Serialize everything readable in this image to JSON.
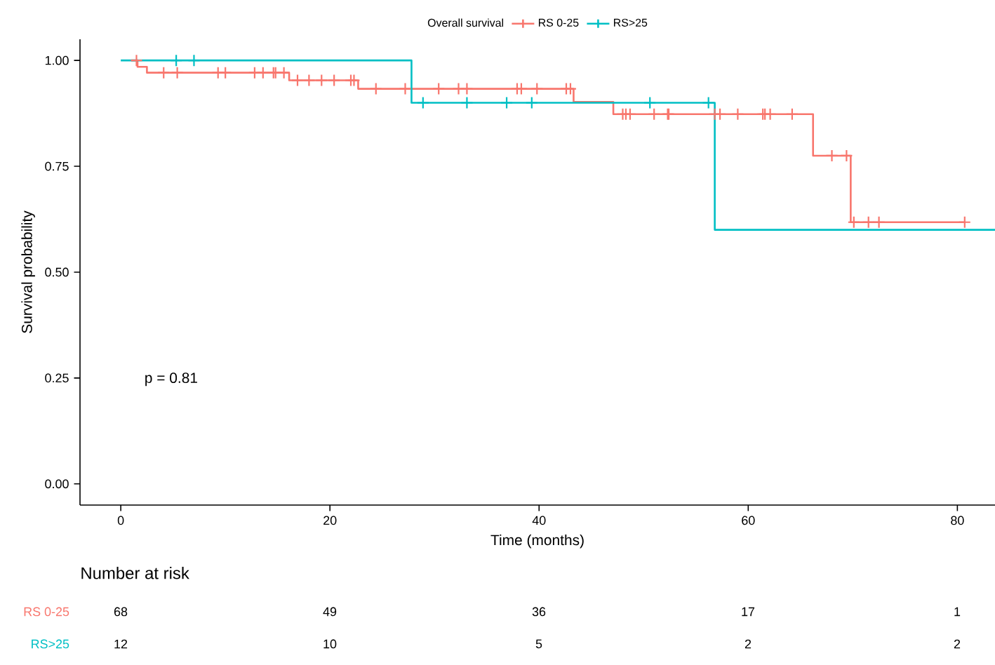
{
  "chart_data": [
    {
      "type": "step",
      "xlabel": "Time (months)",
      "ylabel": "Survival probability",
      "legend_title": "Overall survival",
      "legend": "top",
      "xlim": [
        -3.9,
        83.6
      ],
      "ylim": [
        -0.05,
        1.05
      ],
      "xticks": [
        0,
        20,
        40,
        60,
        80
      ],
      "yticks": [
        {
          "value": 0,
          "label": "0.00"
        },
        {
          "value": 0.25,
          "label": "0.25"
        },
        {
          "value": 0.5,
          "label": "0.50"
        },
        {
          "value": 0.75,
          "label": "0.75"
        },
        {
          "value": 1,
          "label": "1.00"
        }
      ],
      "annotations": [
        "p = 0.81"
      ],
      "series": [
        {
          "name": "RS 0-25",
          "color": "#f8766d",
          "x": [
            1,
            1.6,
            2.5,
            16.1,
            22.7,
            43.3,
            47.1,
            66.2,
            69.8,
            80.7
          ],
          "values": [
            1,
            0.985,
            0.971,
            0.953,
            0.933,
            0.902,
            0.873,
            0.775,
            0.618,
            0.618
          ]
        },
        {
          "name": "RS>25",
          "color": "#00bfc4",
          "x": [
            0,
            27.8,
            56.8,
            83.6
          ],
          "values": [
            1,
            0.9,
            0.6,
            0.6
          ]
        },
        {
          "type": "scatter",
          "marker": "cross",
          "color": "#00bfc4",
          "x": [
            5.3,
            7.0,
            28.9,
            33.1,
            36.9,
            39.3,
            50.6,
            56.2
          ],
          "values": [
            1,
            1,
            0.9,
            0.9,
            0.9,
            0.9,
            0.9,
            0.9
          ]
        },
        {
          "type": "scatter",
          "marker": "cross",
          "color": "#f8766d",
          "x": [
            1.5,
            4.1,
            5.4,
            9.3,
            10.0,
            12.8,
            13.6,
            14.6,
            14.8,
            15.6,
            16.9,
            18.0,
            19.2,
            20.4,
            22.0,
            22.3,
            24.4,
            27.2,
            30.4,
            32.3,
            33.1,
            37.9,
            38.3,
            39.8,
            42.6,
            43.0,
            48.0,
            48.3,
            48.7,
            51.0,
            52.3,
            52.4,
            56.8,
            57.3,
            59.0,
            61.4,
            61.6,
            62.1,
            64.2,
            68.0,
            69.4,
            70.1,
            71.5,
            72.5,
            80.7
          ],
          "values": [
            1,
            0.971,
            0.971,
            0.971,
            0.971,
            0.971,
            0.971,
            0.971,
            0.971,
            0.971,
            0.953,
            0.953,
            0.953,
            0.953,
            0.953,
            0.953,
            0.933,
            0.933,
            0.933,
            0.933,
            0.933,
            0.933,
            0.933,
            0.933,
            0.933,
            0.933,
            0.873,
            0.873,
            0.873,
            0.873,
            0.873,
            0.873,
            0.873,
            0.873,
            0.873,
            0.873,
            0.873,
            0.873,
            0.873,
            0.775,
            0.775,
            0.618,
            0.618,
            0.618,
            0.618
          ]
        }
      ]
    },
    {
      "type": "other",
      "title": "Number at risk",
      "annotations": [
        "RS 0-25",
        "68",
        "49",
        "36",
        "17",
        "1",
        "RS>25",
        "12",
        "10",
        "5",
        "2",
        "2"
      ]
    }
  ]
}
